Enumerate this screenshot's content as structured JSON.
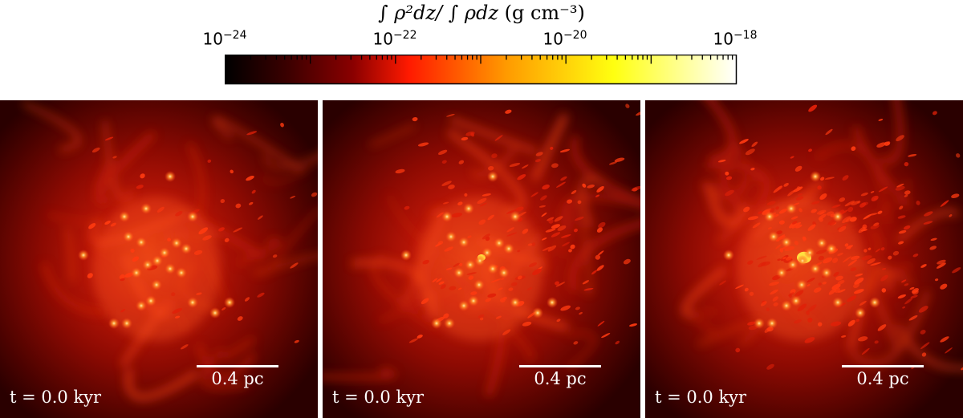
{
  "colorbar": {
    "label_main": "∫ ρ²dz/ ∫ ρdz",
    "label_units": "(g cm⁻³)",
    "ticks": [
      {
        "base": "10",
        "exp": "−24",
        "value": -24
      },
      {
        "base": "10",
        "exp": "−22",
        "value": -22
      },
      {
        "base": "10",
        "exp": "−20",
        "value": -20
      },
      {
        "base": "10",
        "exp": "−18",
        "value": -18
      }
    ],
    "log_range": [
      -24,
      -18
    ],
    "colormap": [
      "#000000",
      "#3a0000",
      "#8a0000",
      "#ff1a00",
      "#ff9a00",
      "#ffff10",
      "#ffffff"
    ]
  },
  "panels": [
    {
      "id": "panel-1",
      "time": "t = 0.0 kyr",
      "scale": "0.4 pc",
      "clumps": 0.2
    },
    {
      "id": "panel-2",
      "time": "t = 0.0 kyr",
      "scale": "0.4 pc",
      "clumps": 0.6
    },
    {
      "id": "panel-3",
      "time": "t = 0.0 kyr",
      "scale": "0.4 pc",
      "clumps": 1.0
    }
  ]
}
